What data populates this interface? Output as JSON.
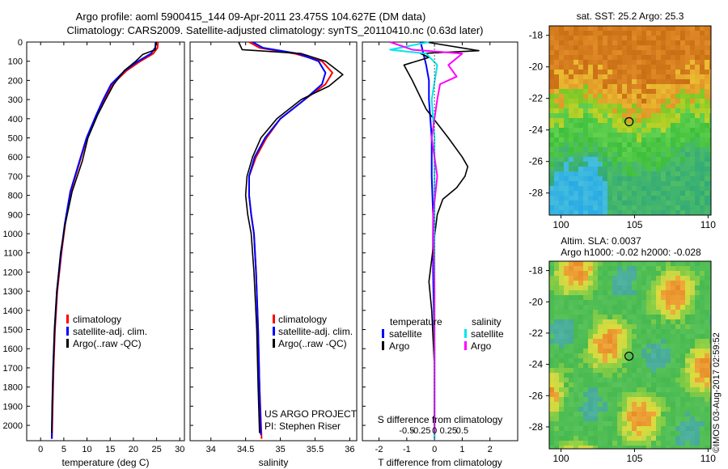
{
  "header": {
    "title_line1": "Argo profile: aoml 5900415_144 09-Apr-2011 23.475S 104.627E (DM data)",
    "title_line2": "Climatology: CARS2009. Satellite-adjusted climatology: synTS_20110410.nc (0.63d later)"
  },
  "credit": "©IMOS 03-Aug-2017 02:59:52",
  "colors": {
    "climatology": "#ff0000",
    "satellite": "#0000ff",
    "argo": "#000000",
    "s_satellite": "#00e5ee",
    "s_argo": "#ff00ff"
  },
  "chart_data": [
    {
      "type": "line",
      "id": "temperature",
      "xlabel": "temperature (deg C)",
      "ylabel": "",
      "xlim": [
        -3,
        31
      ],
      "ylim": [
        2080,
        0
      ],
      "xticks": [
        0,
        5,
        10,
        15,
        20,
        25,
        30
      ],
      "yticks": [
        0,
        100,
        200,
        300,
        400,
        500,
        600,
        700,
        800,
        900,
        1000,
        1100,
        1200,
        1300,
        1400,
        1500,
        1600,
        1700,
        1800,
        1900,
        2000
      ],
      "legend": {
        "placement": "bottom-middle",
        "entries": [
          "climatology",
          "satellite-adj. clim.",
          "Argo(..raw -QC)"
        ]
      },
      "series": [
        {
          "name": "climatology",
          "color": "#ff0000",
          "x": [
            25.3,
            25.2,
            24.3,
            21.5,
            18.5,
            15.5,
            13.8,
            12.2,
            10.0,
            8.5,
            6.5,
            5.3,
            4.5,
            3.6,
            3.1,
            2.8,
            2.6,
            2.45
          ],
          "y": [
            0,
            30,
            60,
            100,
            150,
            220,
            300,
            380,
            500,
            620,
            780,
            950,
            1100,
            1300,
            1500,
            1700,
            1900,
            2070
          ]
        },
        {
          "name": "satellite-adj. clim.",
          "color": "#0000ff",
          "x": [
            24.8,
            24.7,
            23.8,
            21.0,
            18.1,
            15.2,
            13.5,
            12.0,
            9.9,
            8.4,
            6.4,
            5.2,
            4.4,
            3.5,
            3.0,
            2.7,
            2.5,
            2.4
          ],
          "y": [
            0,
            30,
            60,
            100,
            150,
            220,
            300,
            380,
            500,
            620,
            780,
            950,
            1100,
            1300,
            1500,
            1700,
            1900,
            2070
          ]
        },
        {
          "name": "Argo(..raw -QC)",
          "color": "#000000",
          "x": [
            24.9,
            24.7,
            22.0,
            20.5,
            18.0,
            15.8,
            14.0,
            12.3,
            10.2,
            9.0,
            6.8,
            5.3,
            4.3,
            3.5,
            3.0,
            2.7,
            2.5,
            2.4
          ],
          "y": [
            0,
            40,
            65,
            100,
            150,
            220,
            300,
            380,
            500,
            620,
            780,
            950,
            1100,
            1300,
            1500,
            1700,
            1900,
            2040
          ]
        }
      ]
    },
    {
      "type": "line",
      "id": "salinity",
      "xlabel": "salinity",
      "xlim": [
        33.7,
        36.1
      ],
      "ylim": [
        2080,
        0
      ],
      "xticks": [
        34,
        34.5,
        35,
        35.5,
        36
      ],
      "legend": {
        "placement": "bottom-right",
        "entries": [
          "climatology",
          "satellite-adj. clim.",
          "Argo(..raw -QC)"
        ]
      },
      "annotation": [
        "US ARGO PROJECT",
        "PI: Stephen Riser"
      ],
      "series": [
        {
          "name": "climatology",
          "color": "#ff0000",
          "x": [
            34.55,
            34.7,
            35.2,
            35.6,
            35.75,
            35.65,
            35.35,
            35.0,
            34.8,
            34.65,
            34.55,
            34.55,
            34.58,
            34.62,
            34.65,
            34.68,
            34.7,
            34.73
          ],
          "y": [
            0,
            30,
            60,
            100,
            160,
            220,
            300,
            400,
            500,
            600,
            700,
            800,
            900,
            1000,
            1200,
            1500,
            1800,
            2070
          ]
        },
        {
          "name": "satellite-adj. clim.",
          "color": "#0000ff",
          "x": [
            34.6,
            34.75,
            35.25,
            35.55,
            35.65,
            35.6,
            35.35,
            35.0,
            34.78,
            34.63,
            34.55,
            34.55,
            34.58,
            34.62,
            34.65,
            34.68,
            34.7,
            34.72
          ],
          "y": [
            0,
            30,
            60,
            100,
            160,
            220,
            300,
            400,
            500,
            600,
            700,
            800,
            900,
            1000,
            1200,
            1500,
            1800,
            2050
          ]
        },
        {
          "name": "Argo(..raw -QC)",
          "color": "#000000",
          "x": [
            34.4,
            34.45,
            35.3,
            35.65,
            35.9,
            35.7,
            35.3,
            34.95,
            34.72,
            34.6,
            34.52,
            34.5,
            34.53,
            34.58,
            34.62,
            34.66,
            34.68,
            34.7
          ],
          "y": [
            0,
            40,
            60,
            100,
            170,
            230,
            300,
            400,
            500,
            600,
            700,
            800,
            900,
            1000,
            1200,
            1500,
            1800,
            2040
          ]
        }
      ]
    },
    {
      "type": "line",
      "id": "difference",
      "xlabel": "T difference from climatology",
      "xlabel2": "S difference from climatology",
      "xlim": [
        -2.6,
        3.0
      ],
      "ylim": [
        2080,
        0
      ],
      "xticks": [
        -2,
        -1,
        0,
        1,
        2
      ],
      "xticks_s": [
        "-0.5",
        "-0.25",
        "0",
        "0.25",
        "0.5"
      ],
      "legend_t": {
        "placement": "bottom-left",
        "header": "temperature",
        "entries": [
          "satellite",
          "Argo"
        ]
      },
      "legend_s": {
        "placement": "bottom-right",
        "header": "salinity",
        "entries": [
          "satellite",
          "Argo"
        ]
      },
      "series": [
        {
          "name": "T satellite",
          "color": "#0000ff",
          "x": [
            -0.5,
            -0.4,
            -0.3,
            -0.2,
            -0.2,
            -0.15,
            -0.1,
            -0.1,
            -0.05,
            -0.05,
            0.0,
            0.0
          ],
          "y": [
            0,
            60,
            120,
            200,
            300,
            400,
            500,
            700,
            900,
            1200,
            1600,
            2070
          ]
        },
        {
          "name": "T Argo",
          "color": "#000000",
          "x": [
            -0.3,
            1.6,
            -0.5,
            -0.2,
            -1.1,
            -0.8,
            -0.3,
            0.5,
            1.0,
            1.2,
            1.1,
            0.8,
            0.3,
            0.1,
            -0.2,
            -0.1,
            0.0,
            0.0
          ],
          "y": [
            0,
            45,
            60,
            80,
            120,
            200,
            350,
            500,
            600,
            650,
            700,
            760,
            820,
            900,
            1250,
            1400,
            1700,
            2040
          ]
        },
        {
          "name": "S satellite",
          "color": "#00e5ee",
          "x": [
            -0.2,
            -1.6,
            -0.3,
            0.1,
            -0.1,
            0.0,
            0.0,
            0.0,
            0.0
          ],
          "y": [
            0,
            40,
            60,
            120,
            300,
            500,
            900,
            1400,
            2070
          ]
        },
        {
          "name": "S Argo",
          "color": "#ff00ff",
          "x": [
            -1.6,
            -0.8,
            1.0,
            0.5,
            0.8,
            0.2,
            0.1,
            -0.1,
            0.1,
            -0.05,
            0.0,
            0.0
          ],
          "y": [
            0,
            40,
            60,
            120,
            180,
            220,
            300,
            500,
            700,
            900,
            1300,
            2040
          ]
        }
      ]
    },
    {
      "type": "heatmap",
      "id": "sst_map",
      "title": "sat. SST: 25.2 Argo: 25.3",
      "xlim": [
        99.2,
        110.2
      ],
      "ylim": [
        -29.4,
        -17.4
      ],
      "xticks": [
        100,
        105,
        110
      ],
      "yticks": [
        -18,
        -20,
        -22,
        -24,
        -26,
        -28
      ],
      "marker": {
        "lon": 104.627,
        "lat": -23.475
      }
    },
    {
      "type": "heatmap",
      "id": "sla_map",
      "title_line1": "Altim. SLA: 0.0037",
      "title_line2": "Argo h1000: -0.02 h2000: -0.028",
      "xlim": [
        99.2,
        110.2
      ],
      "ylim": [
        -29.4,
        -17.4
      ],
      "xticks": [
        100,
        105,
        110
      ],
      "yticks": [
        -18,
        -20,
        -22,
        -24,
        -26,
        -28
      ],
      "marker": {
        "lon": 104.627,
        "lat": -23.475
      }
    }
  ]
}
